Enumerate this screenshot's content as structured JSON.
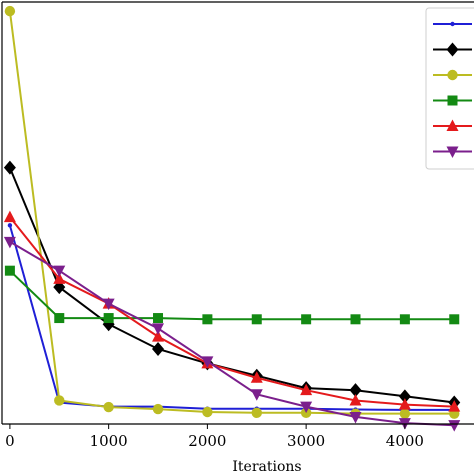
{
  "chart_data": {
    "type": "line",
    "xlabel": "Iterations",
    "ylabel": "",
    "title": "",
    "xlim": [
      -80,
      4700
    ],
    "ylim": [
      0,
      100
    ],
    "x_ticks": [
      0,
      1000,
      2000,
      3000,
      4000
    ],
    "x_tick_labels": [
      "0",
      "1000",
      "2000",
      "3000",
      "4000"
    ],
    "grid": false,
    "legend_position": "top-right",
    "series": [
      {
        "color": "#1f1fd6",
        "marker": "point",
        "x": [
          0,
          500,
          1000,
          1500,
          2000,
          2500,
          3000,
          3500,
          4000,
          4500
        ],
        "y": [
          47,
          4,
          3,
          3,
          2.5,
          2.5,
          2.5,
          2.3,
          2.2,
          2.2
        ]
      },
      {
        "color": "#000000",
        "marker": "diamond",
        "x": [
          0,
          500,
          1000,
          1500,
          2000,
          2500,
          3000,
          3500,
          4000,
          4500
        ],
        "y": [
          61,
          32,
          23,
          17,
          13.5,
          10.5,
          7.5,
          7,
          5.5,
          4
        ]
      },
      {
        "color": "#bcbc22",
        "marker": "circle",
        "x": [
          0,
          500,
          1000,
          1500,
          2000,
          2500,
          3000,
          3500,
          4000,
          4500
        ],
        "y": [
          99,
          4.5,
          2.9,
          2.4,
          1.7,
          1.5,
          1.5,
          1.3,
          1.3,
          1.3
        ]
      },
      {
        "color": "#138a13",
        "marker": "square",
        "x": [
          0,
          500,
          1000,
          1500,
          2000,
          2500,
          3000,
          3500,
          4000,
          4500
        ],
        "y": [
          36,
          24.5,
          24.5,
          24.5,
          24.2,
          24.2,
          24.2,
          24.2,
          24.2,
          24.2
        ]
      },
      {
        "color": "#e41a1c",
        "marker": "triangle-up",
        "x": [
          0,
          500,
          1000,
          1500,
          2000,
          2500,
          3000,
          3500,
          4000,
          4500
        ],
        "y": [
          49,
          34,
          28,
          20,
          13.5,
          10,
          7,
          4.5,
          3.5,
          3
        ]
      },
      {
        "color": "#7b1f8c",
        "marker": "triangle-down",
        "x": [
          0,
          500,
          1000,
          1500,
          2000,
          2500,
          3000,
          3500,
          4000,
          4500
        ],
        "y": [
          43,
          36,
          28,
          22,
          14,
          6,
          3,
          0.5,
          -1,
          -1.5
        ]
      }
    ]
  }
}
